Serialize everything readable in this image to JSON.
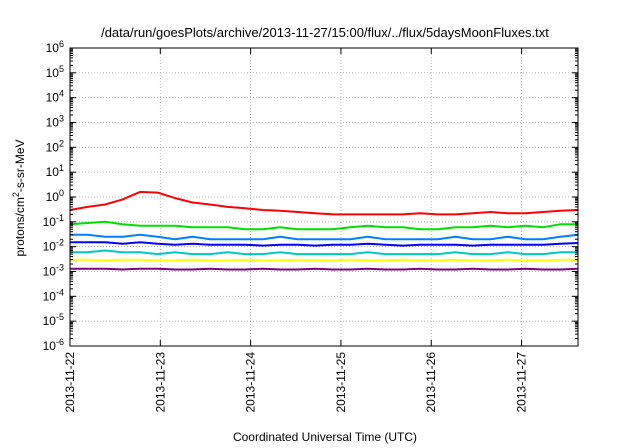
{
  "chart_data": {
    "type": "line",
    "title": "/data/run/goesPlots/archive/2013-11-27/15:00/flux/../flux/5daysMoonFluxes.txt",
    "xlabel": "Coordinated Universal Time (UTC)",
    "ylabel": {
      "pre": "protons/cm",
      "sup": "2",
      "post": "-s-sr-MeV"
    },
    "y_scale": "log",
    "ylim_exponents": [
      -6,
      6
    ],
    "y_ticks": [
      {
        "base": "10",
        "exp": "6"
      },
      {
        "base": "10",
        "exp": "5"
      },
      {
        "base": "10",
        "exp": "4"
      },
      {
        "base": "10",
        "exp": "3"
      },
      {
        "base": "10",
        "exp": "2"
      },
      {
        "base": "10",
        "exp": "1"
      },
      {
        "base": "10",
        "exp": "0"
      },
      {
        "base": "10",
        "exp": "-1"
      },
      {
        "base": "10",
        "exp": "-2"
      },
      {
        "base": "10",
        "exp": "-3"
      },
      {
        "base": "10",
        "exp": "-4"
      },
      {
        "base": "10",
        "exp": "-5"
      },
      {
        "base": "10",
        "exp": "-6"
      }
    ],
    "x_ticks": [
      "2013-11-22",
      "2013-11-23",
      "2013-11-24",
      "2013-11-25",
      "2013-11-26",
      "2013-11-27"
    ],
    "xlim": [
      "2013-11-22T00:00",
      "2013-11-27T15:00"
    ],
    "grid": true,
    "series": [
      {
        "color": "#ff0000",
        "values": [
          0.3,
          0.4,
          0.5,
          0.8,
          1.6,
          1.5,
          0.9,
          0.6,
          0.5,
          0.4,
          0.35,
          0.3,
          0.28,
          0.25,
          0.22,
          0.2,
          0.2,
          0.2,
          0.2,
          0.2,
          0.22,
          0.2,
          0.2,
          0.22,
          0.25,
          0.22,
          0.22,
          0.25,
          0.28,
          0.3
        ]
      },
      {
        "color": "#00e000",
        "values": [
          0.08,
          0.09,
          0.1,
          0.08,
          0.07,
          0.07,
          0.07,
          0.06,
          0.06,
          0.06,
          0.05,
          0.05,
          0.06,
          0.05,
          0.05,
          0.05,
          0.06,
          0.07,
          0.06,
          0.06,
          0.05,
          0.05,
          0.06,
          0.06,
          0.07,
          0.06,
          0.07,
          0.06,
          0.08,
          0.08
        ]
      },
      {
        "color": "#0080ff",
        "values": [
          0.03,
          0.03,
          0.025,
          0.025,
          0.03,
          0.025,
          0.02,
          0.025,
          0.02,
          0.02,
          0.02,
          0.02,
          0.025,
          0.02,
          0.02,
          0.02,
          0.02,
          0.025,
          0.02,
          0.02,
          0.02,
          0.02,
          0.025,
          0.02,
          0.02,
          0.025,
          0.02,
          0.02,
          0.025,
          0.03
        ]
      },
      {
        "color": "#0000ff",
        "values": [
          0.015,
          0.015,
          0.015,
          0.013,
          0.015,
          0.013,
          0.012,
          0.013,
          0.012,
          0.012,
          0.012,
          0.011,
          0.012,
          0.012,
          0.011,
          0.012,
          0.012,
          0.013,
          0.012,
          0.011,
          0.012,
          0.012,
          0.012,
          0.011,
          0.012,
          0.012,
          0.012,
          0.012,
          0.013,
          0.014
        ]
      },
      {
        "color": "#00c8c8",
        "values": [
          0.006,
          0.006,
          0.007,
          0.006,
          0.006,
          0.005,
          0.006,
          0.005,
          0.005,
          0.006,
          0.005,
          0.005,
          0.006,
          0.005,
          0.005,
          0.005,
          0.005,
          0.006,
          0.005,
          0.005,
          0.005,
          0.005,
          0.006,
          0.005,
          0.005,
          0.006,
          0.005,
          0.005,
          0.006,
          0.006
        ]
      },
      {
        "color": "#ffff00",
        "values": [
          0.003,
          0.003,
          0.0028,
          0.003,
          0.003,
          0.0028,
          0.0028,
          0.003,
          0.0028,
          0.0028,
          0.003,
          0.0028,
          0.0028,
          0.003,
          0.0028,
          0.0028,
          0.003,
          0.0028,
          0.0028,
          0.003,
          0.0028,
          0.0028,
          0.003,
          0.0028,
          0.0028,
          0.003,
          0.0028,
          0.0028,
          0.003,
          0.003
        ]
      },
      {
        "color": "#800080",
        "values": [
          0.0013,
          0.0013,
          0.0013,
          0.0012,
          0.0013,
          0.0013,
          0.0012,
          0.0012,
          0.0013,
          0.0012,
          0.0012,
          0.0013,
          0.0012,
          0.0012,
          0.0013,
          0.0012,
          0.0012,
          0.0013,
          0.0012,
          0.0012,
          0.0013,
          0.0012,
          0.0012,
          0.0013,
          0.0012,
          0.0012,
          0.0013,
          0.0012,
          0.0012,
          0.0013
        ]
      }
    ]
  }
}
